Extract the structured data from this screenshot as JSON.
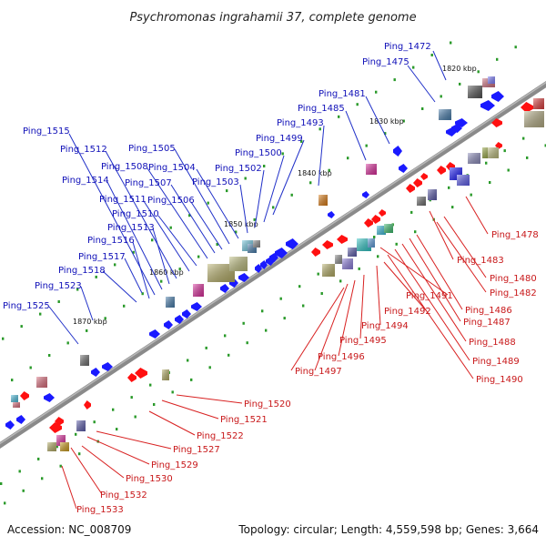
{
  "title": "Psychromonas ingrahamii 37, complete genome",
  "footer": {
    "accession": "Accession: NC_008709",
    "summary": "Topology: circular; Length: 4,559,598 bp; Genes: 3,664"
  },
  "colors": {
    "axis": "#8a8a8a",
    "top_strand_gene": "#1a1aff",
    "bottom_strand_gene": "#ff1010",
    "top_label": "#1010b8",
    "bottom_label": "#c8181a",
    "marker_dots": "#2a9a2a"
  },
  "ticks": [
    "1820 kbp",
    "1830 kbp",
    "1840 kbp",
    "1850 kbp",
    "1860 kbp",
    "1870 kbp"
  ],
  "top_labels": [
    "Ping_1472",
    "Ping_1475",
    "Ping_1481",
    "Ping_1485",
    "Ping_1493",
    "Ping_1499",
    "Ping_1500",
    "Ping_1502",
    "Ping_1503",
    "Ping_1504",
    "Ping_1505",
    "Ping_1506",
    "Ping_1507",
    "Ping_1508",
    "Ping_1510",
    "Ping_1511",
    "Ping_1512",
    "Ping_1513",
    "Ping_1514",
    "Ping_1515",
    "Ping_1516",
    "Ping_1517",
    "Ping_1518",
    "Ping_1523",
    "Ping_1525"
  ],
  "bottom_labels": [
    "Ping_1478",
    "Ping_1480",
    "Ping_1482",
    "Ping_1483",
    "Ping_1486",
    "Ping_1487",
    "Ping_1488",
    "Ping_1489",
    "Ping_1490",
    "Ping_1491",
    "Ping_1492",
    "Ping_1494",
    "Ping_1495",
    "Ping_1496",
    "Ping_1497",
    "Ping_1520",
    "Ping_1521",
    "Ping_1522",
    "Ping_1527",
    "Ping_1529",
    "Ping_1530",
    "Ping_1532",
    "Ping_1533"
  ]
}
